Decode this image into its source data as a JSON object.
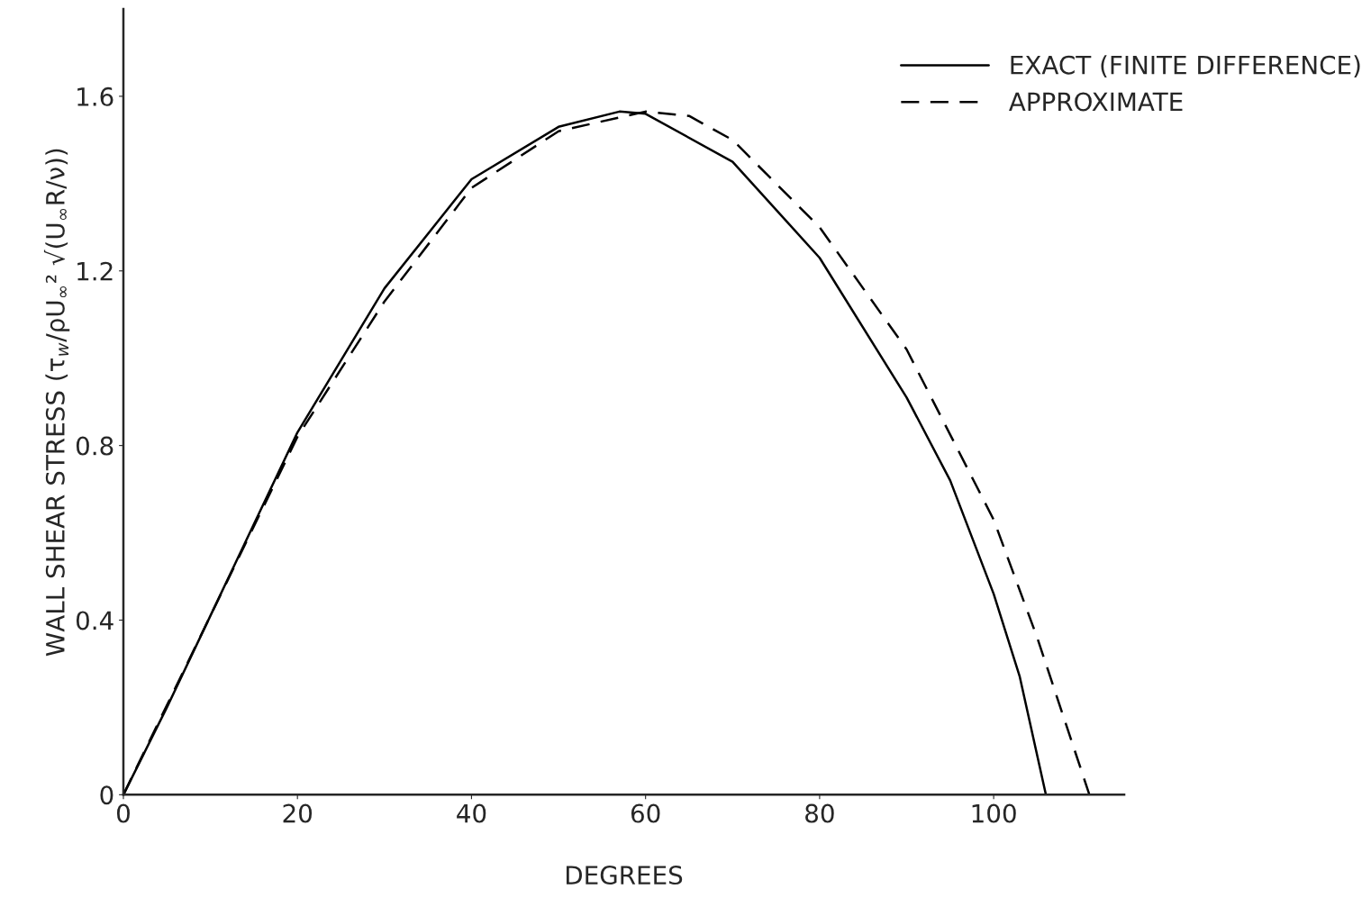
{
  "chart_data": {
    "type": "line",
    "xlabel": "DEGREES",
    "ylabel": "WALL SHEAR STRESS (τ$_{w}$/ρU$_{∞}$² √(U$_{∞}$R/ν))",
    "series": [
      {
        "name": "EXACT (FINITE DIFFERENCE)",
        "color": "#000000",
        "line_style": "solid",
        "x": [
          0,
          5,
          10,
          20,
          30,
          40,
          50,
          57,
          60,
          70,
          80,
          90,
          95,
          100,
          103,
          106
        ],
        "values": [
          0,
          0.2,
          0.41,
          0.83,
          1.16,
          1.41,
          1.53,
          1.565,
          1.56,
          1.45,
          1.23,
          0.91,
          0.72,
          0.46,
          0.27,
          0
        ]
      },
      {
        "name": "APPROXIMATE",
        "color": "#000000",
        "line_style": "dashed",
        "x": [
          0,
          10,
          20,
          30,
          40,
          50,
          60,
          65,
          70,
          80,
          90,
          100,
          105,
          111
        ],
        "values": [
          0,
          0.41,
          0.82,
          1.13,
          1.39,
          1.52,
          1.565,
          1.555,
          1.5,
          1.3,
          1.02,
          0.63,
          0.36,
          0
        ]
      }
    ],
    "xlim": [
      0,
      115
    ],
    "xticks": [
      0,
      20,
      40,
      60,
      80,
      100
    ],
    "ylim": [
      0,
      1.8
    ],
    "yticks": [
      0,
      0.4,
      0.8,
      1.2,
      1.6
    ],
    "legend": "top right",
    "grid": false,
    "marker": "none"
  }
}
